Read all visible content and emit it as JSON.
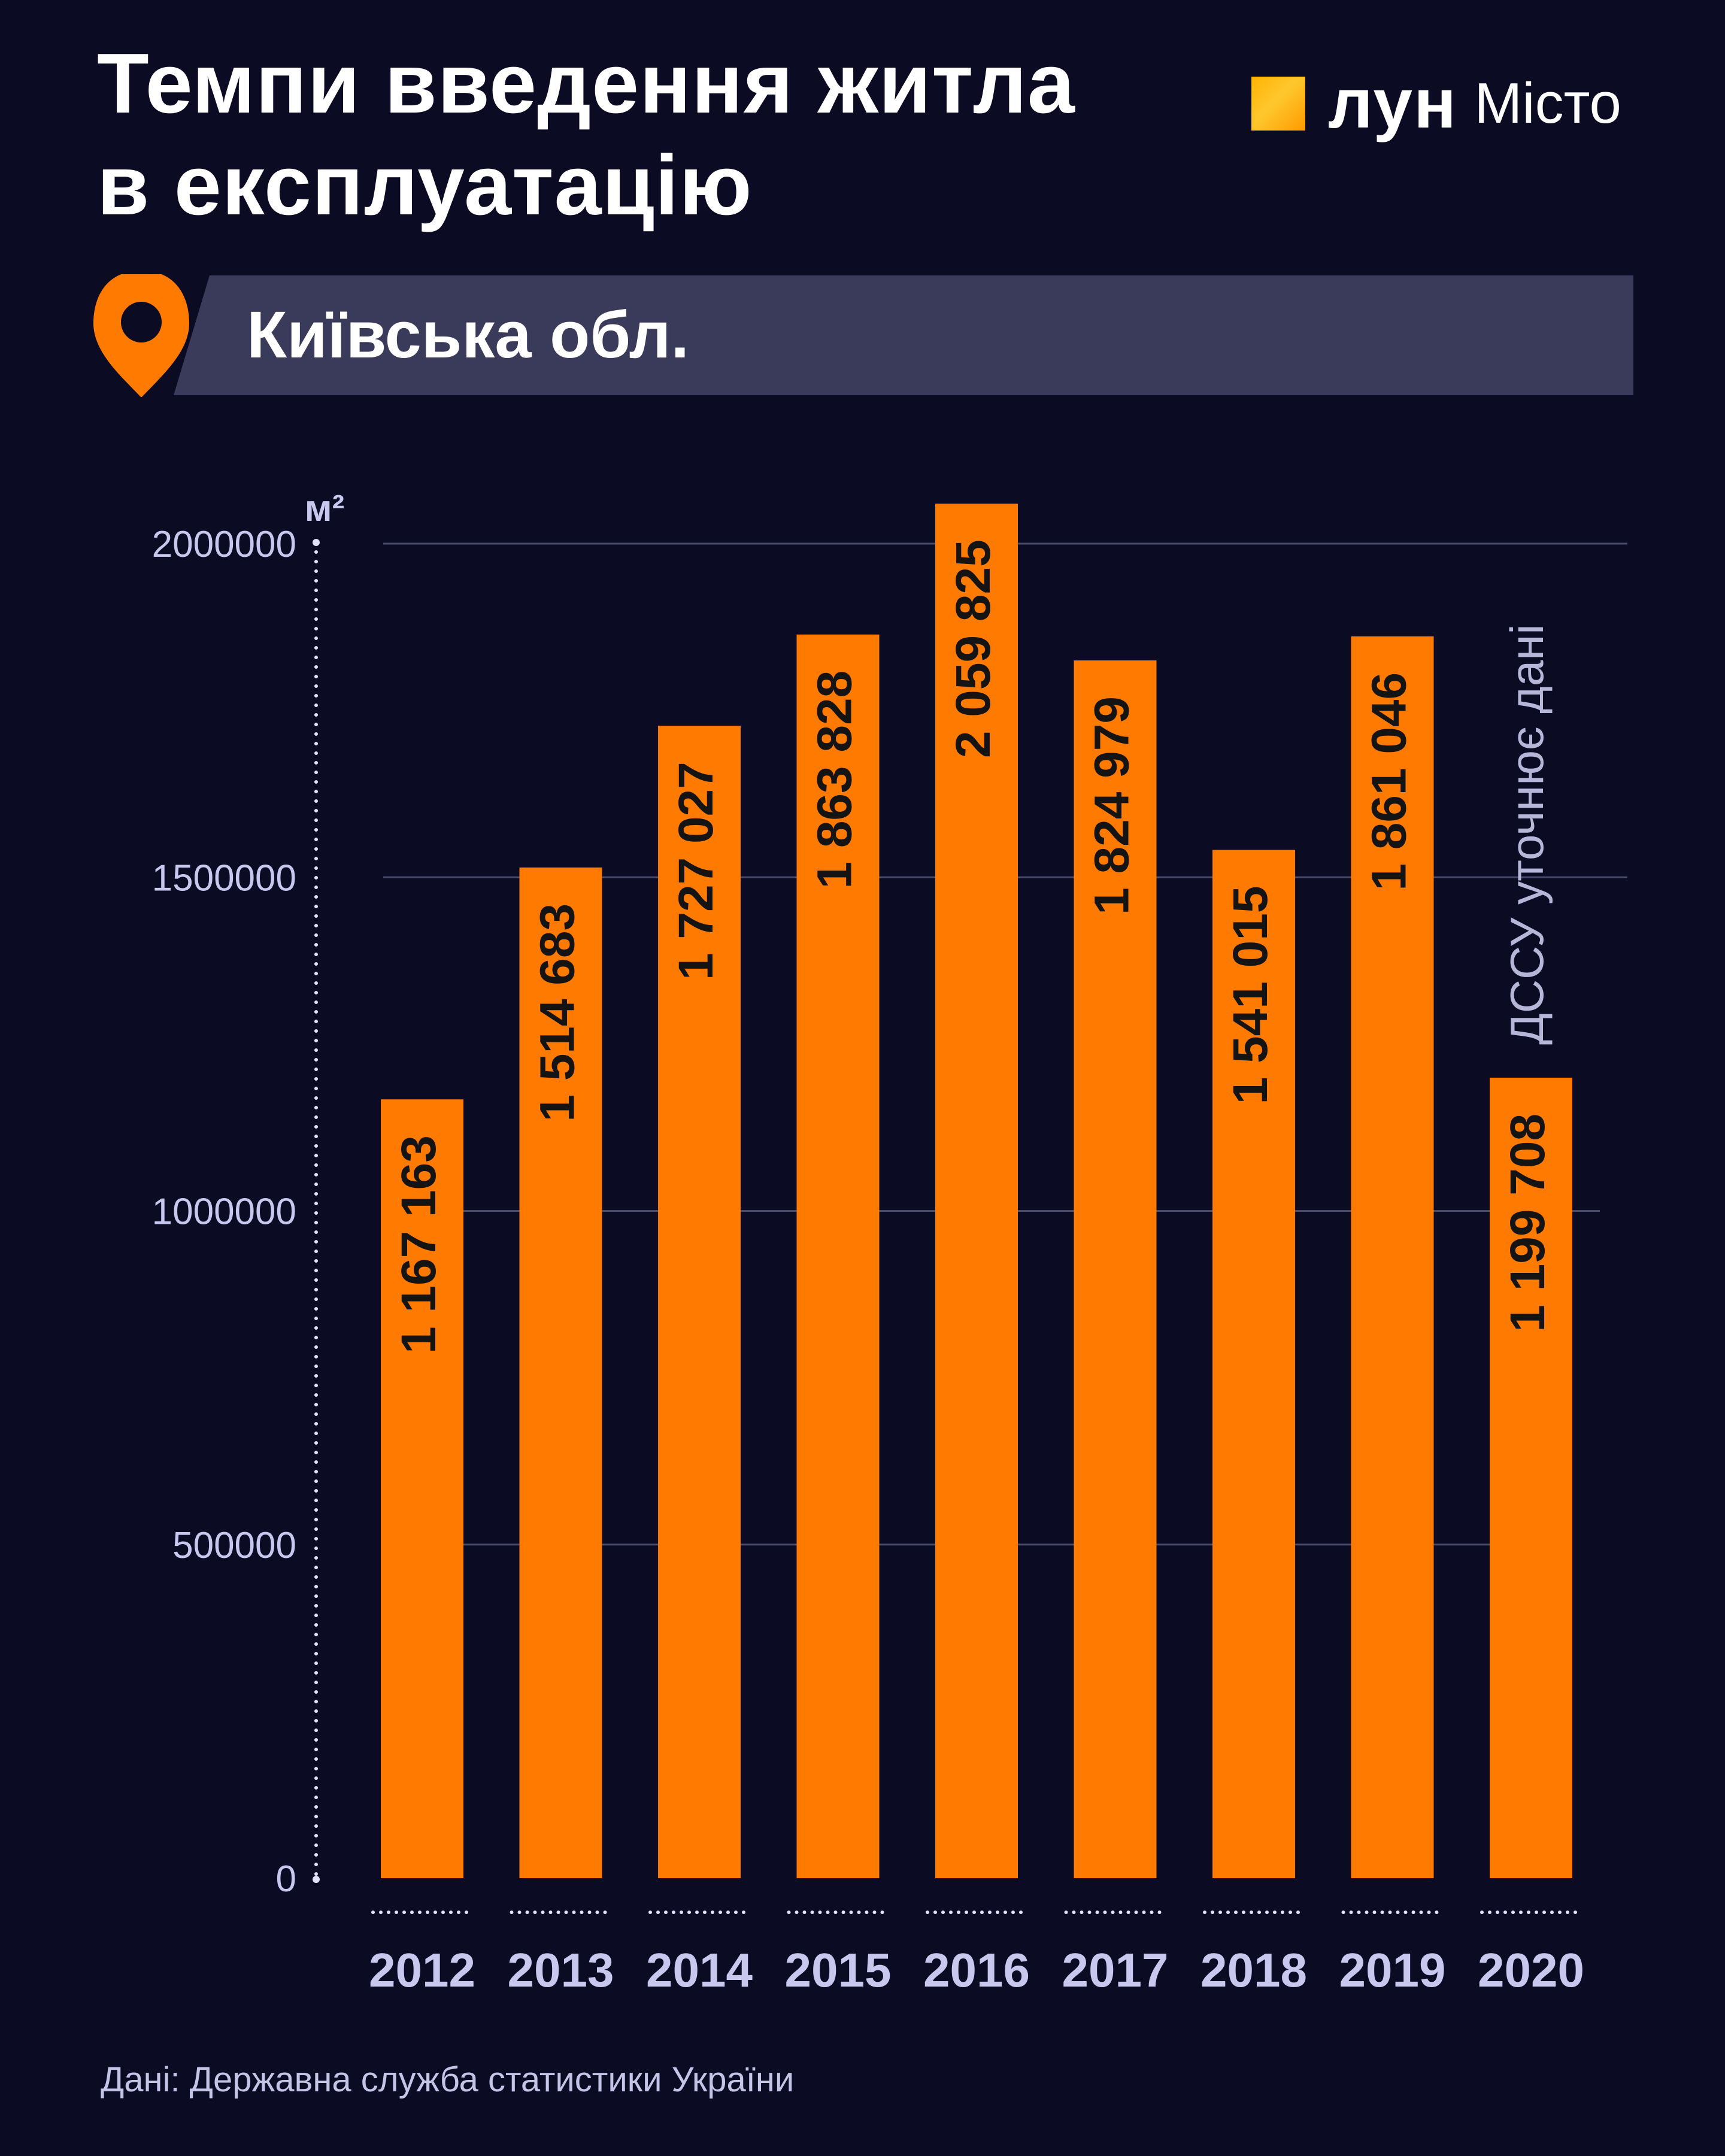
{
  "header": {
    "title_line1": "Темпи введення житла",
    "title_line2": "в експлуатацію"
  },
  "logo": {
    "name": "лун",
    "sub": "Місто"
  },
  "region": {
    "label": "Київська обл.",
    "icon": "location-pin-icon"
  },
  "colors": {
    "background": "#0b0b24",
    "bar": "#ff7a00",
    "banner": "#3a3a5a",
    "accent": "#ff7a00",
    "axis_text": "#c8c8ee"
  },
  "chart_data": {
    "type": "bar",
    "ylabel": "м²",
    "ylim": [
      0,
      2000000
    ],
    "yticks": [
      0,
      500000,
      1000000,
      1500000,
      2000000
    ],
    "ytick_labels": [
      "0",
      "500000",
      "1000000",
      "1500000",
      "2000000"
    ],
    "grid": true,
    "categories": [
      "2012",
      "2013",
      "2014",
      "2015",
      "2016",
      "2017",
      "2018",
      "2019",
      "2020"
    ],
    "values": [
      1167163,
      1514683,
      1727027,
      1863828,
      2059825,
      1824979,
      1541015,
      1861046,
      1199708
    ],
    "value_labels": [
      "1 167 163",
      "1 514 683",
      "1 727 027",
      "1 863 828",
      "2 059 825",
      "1 824 979",
      "1 541 015",
      "1 861 046",
      "1 199 708"
    ],
    "annotations": [
      {
        "category": "2020",
        "text": "ДССУ уточнює дані"
      }
    ]
  },
  "footer": {
    "source": "Дані: Державна служба статистики України"
  }
}
